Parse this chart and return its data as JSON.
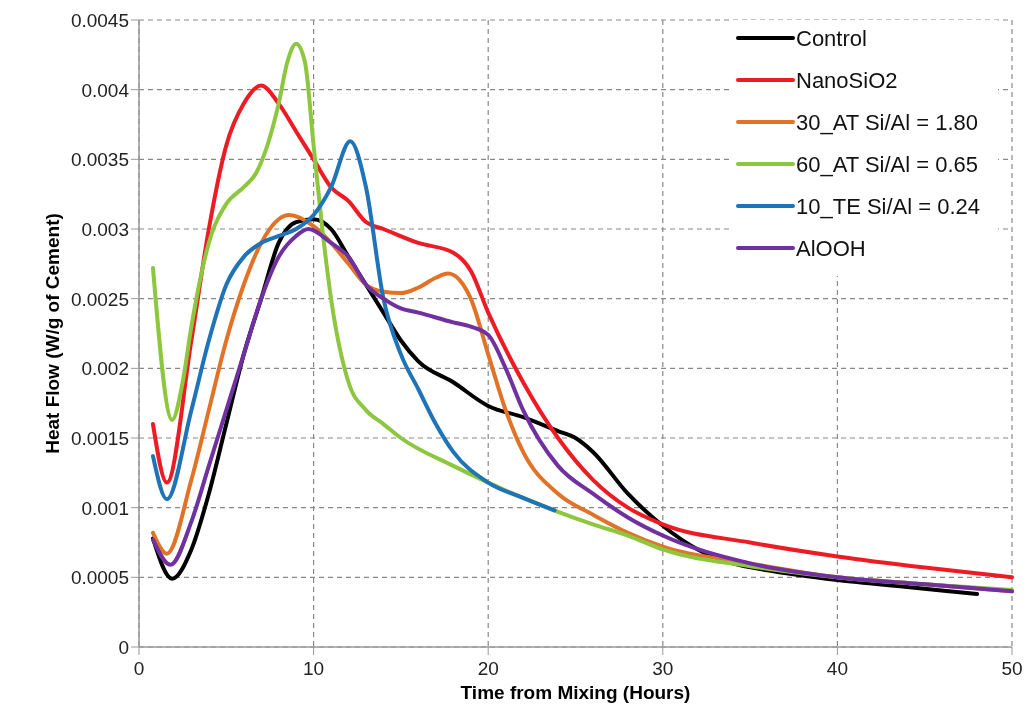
{
  "chart_data": {
    "type": "line",
    "xlabel": "Time from Mixing (Hours)",
    "ylabel": "Heat Flow (W/g of Cement)",
    "xlim": [
      0,
      50
    ],
    "xticks": [
      0,
      10,
      20,
      30,
      40,
      50
    ],
    "ylim": [
      0,
      0.0045
    ],
    "yticks": [
      0,
      0.0005,
      0.001,
      0.0015,
      0.002,
      0.0025,
      0.003,
      0.0035,
      0.004,
      0.0045
    ],
    "grid": true,
    "legend": "top right",
    "line_style": "solid",
    "marker": "none",
    "series": [
      {
        "name": "Control",
        "color": "#000000",
        "x": [
          0.8,
          1.9,
          3,
          4,
          5,
          6,
          7,
          8,
          9,
          10,
          11,
          12,
          13,
          14,
          15,
          16,
          18,
          20,
          22,
          24,
          25,
          26,
          28,
          30,
          32,
          34,
          36,
          40,
          44,
          48
        ],
        "values": [
          0.00078,
          0.00049,
          0.0007,
          0.0011,
          0.0016,
          0.0021,
          0.0025,
          0.0029,
          0.00305,
          0.00307,
          0.003,
          0.0028,
          0.0026,
          0.0024,
          0.0022,
          0.00205,
          0.0019,
          0.00173,
          0.00165,
          0.00155,
          0.0015,
          0.0014,
          0.0011,
          0.00087,
          0.0007,
          0.0006,
          0.00055,
          0.00048,
          0.00043,
          0.00038
        ]
      },
      {
        "name": "NanoSiO2",
        "color": "#ed1c24",
        "x": [
          0.8,
          1.6,
          3,
          4,
          5,
          6,
          7,
          8,
          9,
          10,
          11,
          12,
          13,
          14,
          16,
          18,
          19,
          20,
          22,
          24,
          26,
          28,
          30,
          35,
          40,
          45,
          50
        ],
        "values": [
          0.0016,
          0.00118,
          0.0022,
          0.003,
          0.0036,
          0.0039,
          0.00403,
          0.0039,
          0.0037,
          0.0035,
          0.0033,
          0.0032,
          0.00305,
          0.003,
          0.0029,
          0.00283,
          0.0027,
          0.0024,
          0.0019,
          0.0015,
          0.0012,
          0.001,
          0.00088,
          0.00075,
          0.00065,
          0.00057,
          0.0005
        ]
      },
      {
        "name": "30_AT Si/Al = 1.80",
        "color": "#e07328",
        "x": [
          0.8,
          1.6,
          3,
          4,
          5,
          6,
          7,
          8,
          8.6,
          10,
          11,
          12,
          13,
          14,
          15,
          16,
          17,
          17.7,
          19,
          20,
          21,
          22,
          24,
          26,
          28,
          30,
          35,
          40,
          45,
          50
        ],
        "values": [
          0.00082,
          0.00067,
          0.0012,
          0.0017,
          0.0022,
          0.0026,
          0.0029,
          0.00307,
          0.0031,
          0.00302,
          0.0029,
          0.00275,
          0.0026,
          0.00255,
          0.00254,
          0.00258,
          0.00265,
          0.00268,
          0.0025,
          0.0021,
          0.0017,
          0.0014,
          0.0011,
          0.00095,
          0.00082,
          0.00072,
          0.0006,
          0.0005,
          0.00045,
          0.0004
        ]
      },
      {
        "name": "60_AT Si/Al = 0.65",
        "color": "#8dc63f",
        "x": [
          0.8,
          1.9,
          2.5,
          3,
          4,
          5,
          6,
          6.7,
          8,
          8.5,
          9,
          9.5,
          10,
          10.5,
          11,
          12,
          13,
          14,
          15,
          18,
          20,
          22,
          24,
          26,
          28,
          30,
          35,
          40,
          45,
          50
        ],
        "values": [
          0.00272,
          0.00163,
          0.0019,
          0.0023,
          0.0029,
          0.00318,
          0.0033,
          0.0034,
          0.0039,
          0.0042,
          0.00433,
          0.0042,
          0.0036,
          0.003,
          0.0025,
          0.0019,
          0.0017,
          0.0016,
          0.0015,
          0.0013,
          0.00118,
          0.00107,
          0.00097,
          0.00088,
          0.0008,
          0.0007,
          0.00058,
          0.0005,
          0.00045,
          0.00041
        ]
      },
      {
        "name": "10_TE Si/Al = 0.24",
        "color": "#1f73b7",
        "x": [
          0.8,
          1.6,
          3,
          4,
          5,
          6,
          7,
          8,
          9,
          10,
          11,
          12.1,
          13,
          14,
          15,
          16,
          17,
          18,
          20,
          22,
          23.8
        ],
        "values": [
          0.00137,
          0.00106,
          0.0017,
          0.0022,
          0.0026,
          0.0028,
          0.0029,
          0.00295,
          0.003,
          0.0031,
          0.0033,
          0.00363,
          0.0033,
          0.0025,
          0.0021,
          0.00185,
          0.0016,
          0.0014,
          0.00118,
          0.00107,
          0.00098
        ]
      },
      {
        "name": "AlOOH",
        "color": "#7030a0",
        "x": [
          0.8,
          1.8,
          3,
          4,
          5,
          6,
          7,
          8,
          9,
          9.7,
          11,
          12,
          13,
          14,
          15,
          16,
          18,
          19,
          20,
          21,
          22,
          24,
          26,
          28,
          30,
          35,
          40,
          45,
          50
        ],
        "values": [
          0.00077,
          0.00059,
          0.0009,
          0.0013,
          0.0017,
          0.0021,
          0.0025,
          0.0028,
          0.00295,
          0.003,
          0.0029,
          0.0028,
          0.0026,
          0.0025,
          0.00243,
          0.0024,
          0.00233,
          0.0023,
          0.00224,
          0.002,
          0.0017,
          0.0013,
          0.0011,
          0.00093,
          0.0008,
          0.0006,
          0.0005,
          0.00045,
          0.0004
        ]
      }
    ]
  }
}
